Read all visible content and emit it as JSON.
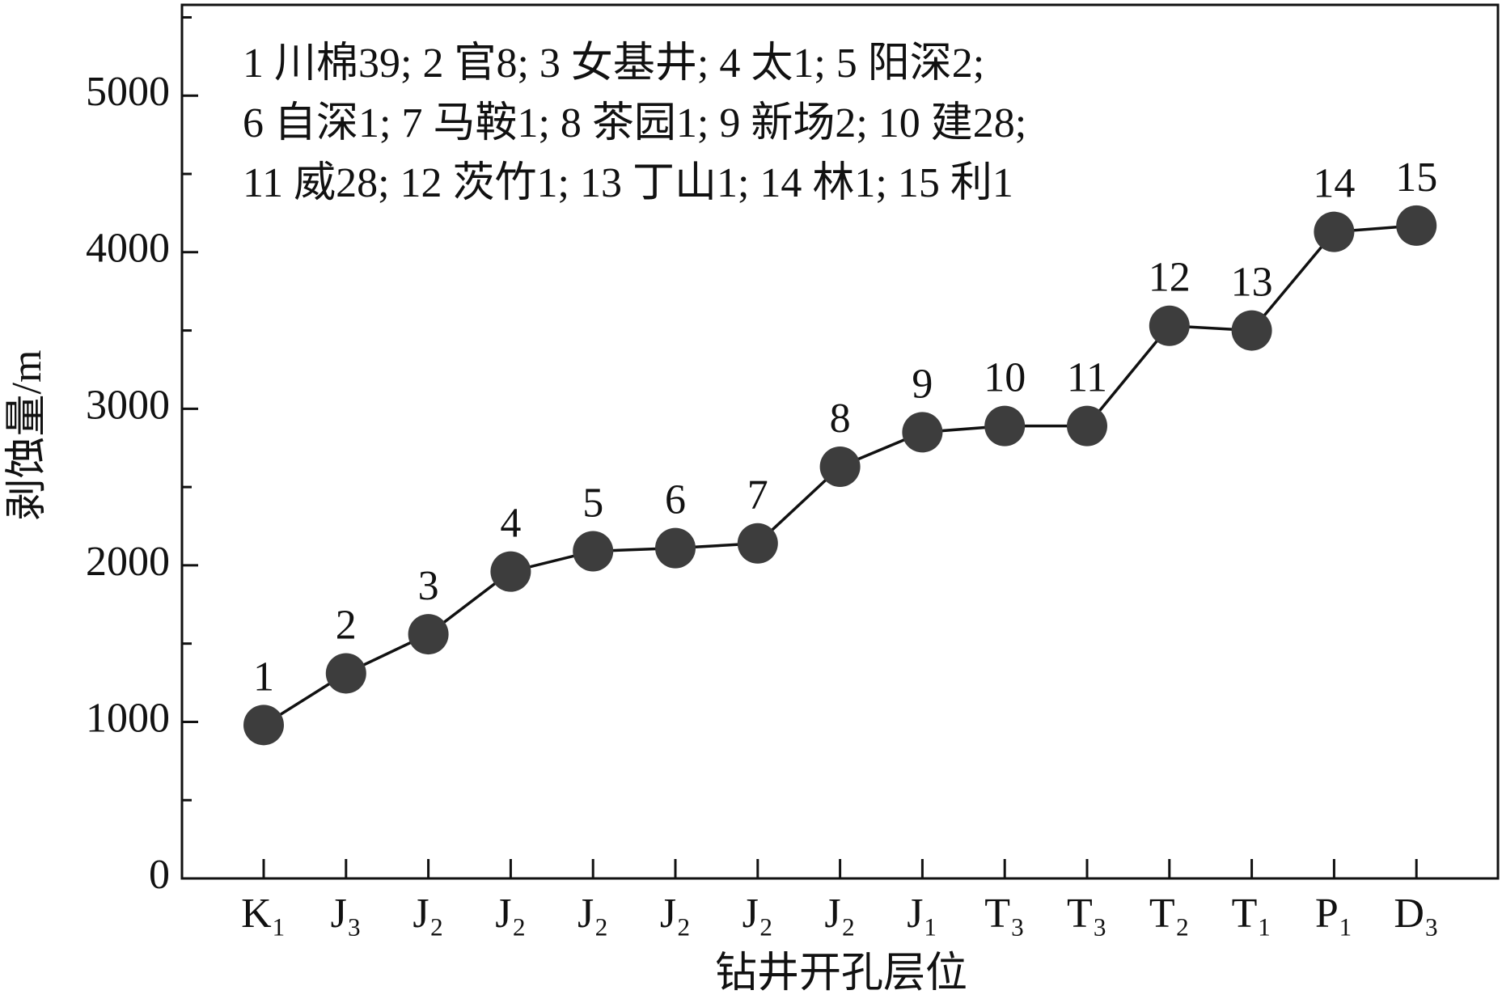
{
  "chart_data": {
    "type": "line",
    "x_label": "钻井开孔层位",
    "y_label": "剥蚀量/m",
    "categories": [
      "K₁",
      "J₃",
      "J₂",
      "J₂",
      "J₂",
      "J₂",
      "J₂",
      "J₂",
      "J₁",
      "T₃",
      "T₃",
      "T₂",
      "T₁",
      "P₁",
      "D₃"
    ],
    "series": [
      {
        "color": "#3d3d3d",
        "values": [
          980,
          1310,
          1560,
          1960,
          2090,
          2110,
          2140,
          2630,
          2850,
          2890,
          2890,
          3530,
          3500,
          4130,
          4170
        ],
        "point_labels": [
          "1",
          "2",
          "3",
          "4",
          "5",
          "6",
          "7",
          "8",
          "9",
          "10",
          "11",
          "12",
          "13",
          "14",
          "15"
        ]
      }
    ],
    "ylim": [
      0,
      5580
    ],
    "yticks": [
      0,
      1000,
      2000,
      3000,
      4000,
      5000
    ],
    "yminorticks": [
      500,
      1500,
      2500,
      3500,
      4500,
      5500
    ],
    "annotation_lines": [
      "1 川棉39; 2 官8; 3 女基井; 4 太1; 5 阳深2;",
      "6 自深1; 7 马鞍1; 8 茶园1; 9 新场2; 10 建28;",
      "11  威28; 12 茨竹1; 13 丁山1; 14 林1; 15 利1"
    ]
  }
}
